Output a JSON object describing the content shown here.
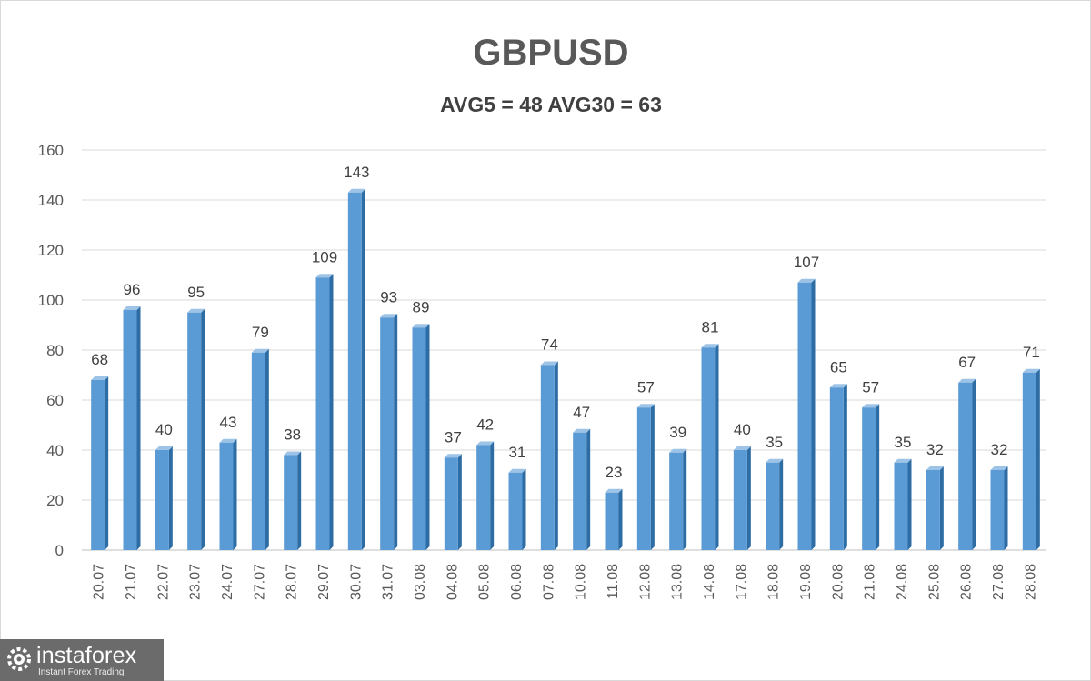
{
  "chart_data": {
    "type": "bar",
    "title": "GBPUSD",
    "subtitle": "AVG5 = 48 AVG30 = 63",
    "categories": [
      "20.07",
      "21.07",
      "22.07",
      "23.07",
      "24.07",
      "27.07",
      "28.07",
      "29.07",
      "30.07",
      "31.07",
      "03.08",
      "04.08",
      "05.08",
      "06.08",
      "07.08",
      "10.08",
      "11.08",
      "12.08",
      "13.08",
      "14.08",
      "17.08",
      "18.08",
      "19.08",
      "20.08",
      "21.08",
      "24.08",
      "25.08",
      "26.08",
      "27.08",
      "28.08"
    ],
    "values": [
      68,
      96,
      40,
      95,
      43,
      79,
      38,
      109,
      143,
      93,
      89,
      37,
      42,
      31,
      74,
      47,
      23,
      57,
      39,
      81,
      40,
      35,
      107,
      65,
      57,
      35,
      32,
      67,
      32,
      71
    ],
    "ylim": [
      0,
      160
    ],
    "yticks": [
      0,
      20,
      40,
      60,
      80,
      100,
      120,
      140,
      160
    ],
    "grid": true,
    "data_labels": true,
    "colors": {
      "bar": "#5b9bd5",
      "bar_side": "#2e6da4",
      "bar_top": "#9dc3e6",
      "grid": "#d9d9d9",
      "text": "#404040"
    }
  },
  "watermark": {
    "brand": "instaforex",
    "tagline": "Instant Forex Trading"
  }
}
